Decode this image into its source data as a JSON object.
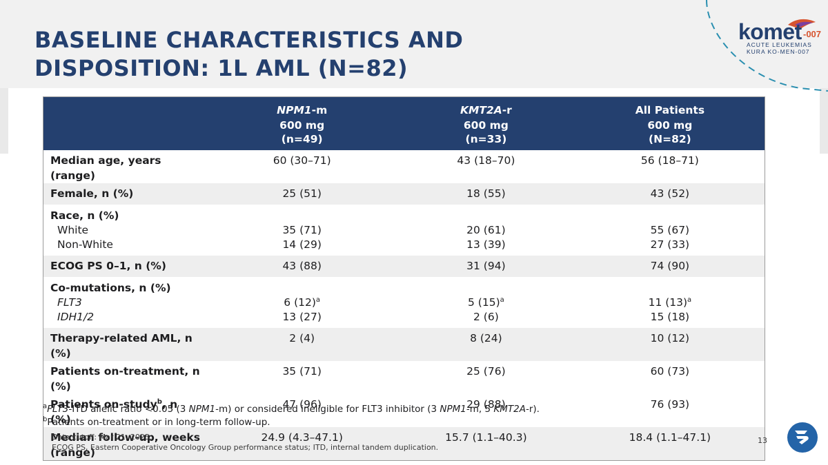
{
  "title": {
    "line1": "BASELINE CHARACTERISTICS AND",
    "line2": "DISPOSITION: 1L AML (N=82)"
  },
  "logo": {
    "word": "komet",
    "suffix": "-007",
    "line1": "ACUTE LEUKEMIAS",
    "line2": "KURA KO-MEN-007",
    "accent_color": "#d7542f",
    "brand_color": "#24406f"
  },
  "table": {
    "header_color": "#24406f",
    "columns": [
      {
        "name_italic": "NPM1",
        "name_rest": "-m",
        "dose": "600 mg",
        "n": "(n=49)"
      },
      {
        "name_italic": "KMT2A",
        "name_rest": "-r",
        "dose": "600 mg",
        "n": "(n=33)"
      },
      {
        "name_italic": "",
        "name_rest": "All Patients",
        "dose": "600 mg",
        "n": "(N=82)"
      }
    ],
    "rows": {
      "median_age": {
        "label": "Median age, years (range)",
        "values": [
          "60 (30–71)",
          "43 (18–70)",
          "56 (18–71)"
        ]
      },
      "female": {
        "label": "Female, n (%)",
        "values": [
          "25 (51)",
          "18 (55)",
          "43 (52)"
        ]
      },
      "race": {
        "label": "Race, n (%)",
        "white_label": "White",
        "nonwhite_label": "Non-White",
        "white": [
          "35 (71)",
          "20 (61)",
          "55 (67)"
        ],
        "nonwhite": [
          "14 (29)",
          "13 (39)",
          "27 (33)"
        ]
      },
      "ecog": {
        "label": "ECOG PS 0–1, n (%)",
        "values": [
          "43 (88)",
          "31 (94)",
          "74 (90)"
        ]
      },
      "comut": {
        "label": "Co-mutations, n (%)",
        "flt3_label": "FLT3",
        "idh_label": "IDH1/2",
        "flt3": [
          "6 (12)",
          "5 (15)",
          "11 (13)"
        ],
        "flt3_sup": "a",
        "idh": [
          "13 (27)",
          "2 (6)",
          "15 (18)"
        ]
      },
      "therapy": {
        "label": "Therapy-related AML, n (%)",
        "values": [
          "2 (4)",
          "8 (24)",
          "10 (12)"
        ]
      },
      "on_treatment": {
        "label": "Patients on-treatment, n (%)",
        "values": [
          "35 (71)",
          "25 (76)",
          "60 (73)"
        ]
      },
      "on_study": {
        "label_pre": "Patients on-study",
        "label_sup": "b",
        "label_post": ", n (%)",
        "values": [
          "47 (96)",
          "29 (88)",
          "76 (93)"
        ]
      },
      "followup": {
        "label": "Median follow-up, weeks (range)",
        "values": [
          "24.9 (4.3–47.1)",
          "15.7 (1.1–40.3)",
          "18.4 (1.1–47.1)"
        ]
      }
    }
  },
  "footnotes": {
    "a_sup": "a",
    "a_p1": "FLT3",
    "a_p2": "-ITD allelic ratio <0.05 (3 ",
    "a_p3": "NPM1",
    "a_p4": "-m) or considered ineligible for FLT3 inhibitor (3 ",
    "a_p5": "NPM1",
    "a_p6": "-m, 5 ",
    "a_p7": "KMT2A",
    "a_p8": "-r).",
    "b_sup": "b",
    "b_text": "Patients on-treatment or in long-term follow-up."
  },
  "cutoff": {
    "line1": "Data cutoff: Mar 21, 2025.",
    "line2": "ECOG PS, Eastern Cooperative Oncology Group performance status; ITD, internal tandem duplication."
  },
  "page_number": "13"
}
